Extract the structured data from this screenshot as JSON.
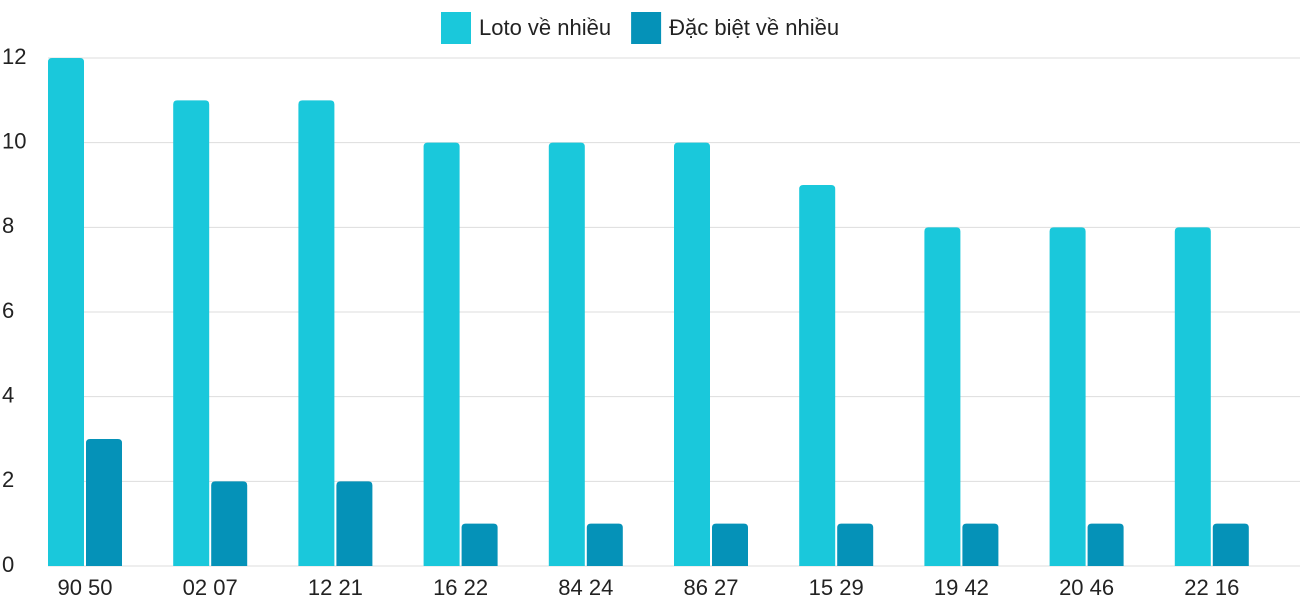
{
  "chart_data": {
    "type": "bar",
    "categories": [
      "90 50",
      "02 07",
      "12 21",
      "16 22",
      "84 24",
      "86 27",
      "15 29",
      "19 42",
      "20 46",
      "22 16"
    ],
    "series": [
      {
        "name": "Loto về nhiều",
        "color": "#1ac8db",
        "values": [
          12,
          11,
          11,
          10,
          10,
          10,
          9,
          8,
          8,
          8
        ]
      },
      {
        "name": "Đặc biệt về nhiều",
        "color": "#0592b8",
        "values": [
          3,
          2,
          2,
          1,
          1,
          1,
          1,
          1,
          1,
          1
        ]
      }
    ],
    "ylim": [
      0,
      12
    ],
    "yticks": [
      0,
      2,
      4,
      6,
      8,
      10,
      12
    ],
    "grid": true,
    "legend": "top"
  }
}
